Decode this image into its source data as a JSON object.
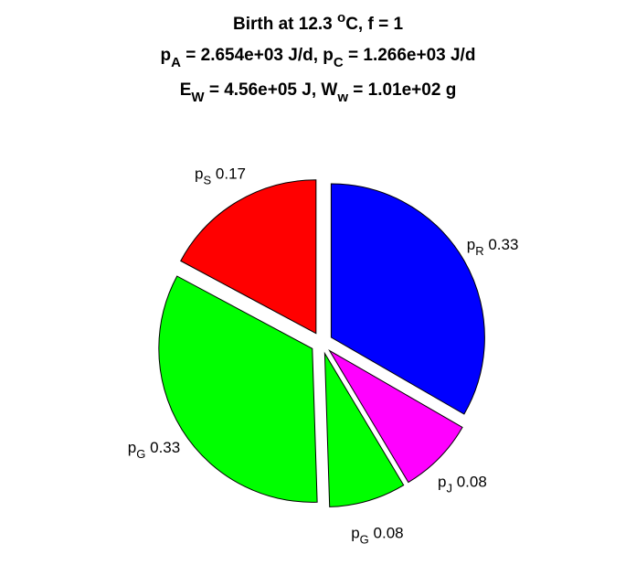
{
  "chart_data": {
    "type": "pie",
    "title": [
      {
        "parts": [
          {
            "t": "Birth at 12.3 "
          },
          {
            "t": "o",
            "sup": true
          },
          {
            "t": "C, f = 1"
          }
        ]
      },
      {
        "parts": [
          {
            "t": "p"
          },
          {
            "t": "A",
            "sub": true
          },
          {
            "t": " = 2.654e+03 J/d, p"
          },
          {
            "t": "C",
            "sub": true
          },
          {
            "t": " = 1.266e+03 J/d"
          }
        ]
      },
      {
        "parts": [
          {
            "t": "E"
          },
          {
            "t": "W",
            "sub": true
          },
          {
            "t": " = 4.56e+05 J, W"
          },
          {
            "t": "w",
            "sub": true
          },
          {
            "t": " = 1.01e+02 g"
          }
        ]
      }
    ],
    "slices": [
      {
        "symbol": "p",
        "subscript": "R",
        "value": 0.33,
        "label_value": "0.33",
        "color": "#0000ff",
        "exploded": true
      },
      {
        "symbol": "p",
        "subscript": "J",
        "value": 0.08,
        "label_value": "0.08",
        "color": "#ff00ff",
        "exploded": true
      },
      {
        "symbol": "p",
        "subscript": "G",
        "value": 0.08,
        "label_value": "0.08",
        "color": "#00ff00",
        "exploded": true
      },
      {
        "symbol": "p",
        "subscript": "G",
        "value": 0.33,
        "label_value": "0.33",
        "color": "#00ff00",
        "exploded": true
      },
      {
        "symbol": "p",
        "subscript": "S",
        "value": 0.17,
        "label_value": "0.17",
        "color": "#ff0000",
        "exploded": true
      }
    ],
    "start_angle_deg": 90,
    "direction": "clockwise",
    "legend": "none"
  }
}
